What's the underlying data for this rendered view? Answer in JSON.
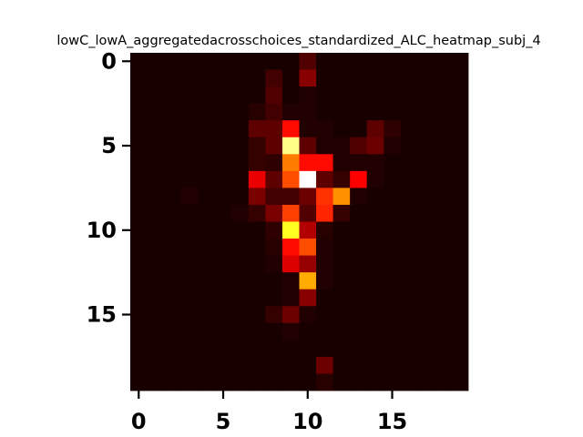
{
  "chart_data": {
    "type": "heatmap",
    "title": "lowC_lowA_aggregatedacrosschoices_standardized_ALC_heatmap_subj_4",
    "xlabel": "",
    "ylabel": "",
    "colormap": "hot",
    "vmin": 0,
    "vmax": 1,
    "xlim": [
      -0.5,
      19.5
    ],
    "ylim": [
      19.5,
      -0.5
    ],
    "x_ticks": [
      0,
      5,
      10,
      15
    ],
    "y_ticks": [
      0,
      5,
      10,
      15
    ],
    "x_tick_labels": [
      "0",
      "5",
      "10",
      "15"
    ],
    "y_tick_labels": [
      "0",
      "5",
      "10",
      "15"
    ],
    "grid": false,
    "legend": "none",
    "values": [
      [
        0.02,
        0.02,
        0.02,
        0.02,
        0.02,
        0.02,
        0.02,
        0.02,
        0.02,
        0.02,
        0.1,
        0.02,
        0.02,
        0.02,
        0.02,
        0.02,
        0.02,
        0.02,
        0.02,
        0.02
      ],
      [
        0.02,
        0.02,
        0.02,
        0.02,
        0.02,
        0.02,
        0.02,
        0.02,
        0.08,
        0.02,
        0.18,
        0.02,
        0.02,
        0.02,
        0.02,
        0.02,
        0.02,
        0.02,
        0.02,
        0.02
      ],
      [
        0.02,
        0.02,
        0.02,
        0.02,
        0.02,
        0.02,
        0.02,
        0.02,
        0.1,
        0.02,
        0.03,
        0.02,
        0.02,
        0.02,
        0.02,
        0.02,
        0.02,
        0.02,
        0.02,
        0.02
      ],
      [
        0.02,
        0.02,
        0.02,
        0.02,
        0.02,
        0.02,
        0.02,
        0.04,
        0.08,
        0.03,
        0.03,
        0.02,
        0.02,
        0.02,
        0.02,
        0.02,
        0.02,
        0.02,
        0.02,
        0.02
      ],
      [
        0.02,
        0.02,
        0.02,
        0.02,
        0.02,
        0.02,
        0.02,
        0.12,
        0.12,
        0.38,
        0.03,
        0.03,
        0.02,
        0.02,
        0.12,
        0.05,
        0.02,
        0.02,
        0.02,
        0.02
      ],
      [
        0.02,
        0.02,
        0.02,
        0.02,
        0.02,
        0.02,
        0.02,
        0.06,
        0.12,
        0.88,
        0.12,
        0.03,
        0.03,
        0.1,
        0.14,
        0.03,
        0.02,
        0.02,
        0.02,
        0.02
      ],
      [
        0.02,
        0.02,
        0.02,
        0.02,
        0.02,
        0.02,
        0.02,
        0.06,
        0.05,
        0.55,
        0.38,
        0.38,
        0.03,
        0.03,
        0.03,
        0.02,
        0.02,
        0.02,
        0.02,
        0.02
      ],
      [
        0.02,
        0.02,
        0.02,
        0.02,
        0.02,
        0.02,
        0.02,
        0.32,
        0.12,
        0.48,
        1.0,
        0.12,
        0.06,
        0.36,
        0.03,
        0.02,
        0.02,
        0.02,
        0.02,
        0.02
      ],
      [
        0.02,
        0.02,
        0.02,
        0.03,
        0.02,
        0.02,
        0.02,
        0.16,
        0.08,
        0.08,
        0.14,
        0.44,
        0.58,
        0.03,
        0.02,
        0.02,
        0.02,
        0.02,
        0.02,
        0.02
      ],
      [
        0.02,
        0.02,
        0.02,
        0.02,
        0.02,
        0.02,
        0.03,
        0.06,
        0.16,
        0.46,
        0.1,
        0.42,
        0.06,
        0.02,
        0.02,
        0.02,
        0.02,
        0.02,
        0.02,
        0.02
      ],
      [
        0.02,
        0.02,
        0.02,
        0.02,
        0.02,
        0.02,
        0.02,
        0.02,
        0.05,
        0.78,
        0.24,
        0.04,
        0.02,
        0.02,
        0.02,
        0.02,
        0.02,
        0.02,
        0.02,
        0.02
      ],
      [
        0.02,
        0.02,
        0.02,
        0.02,
        0.02,
        0.02,
        0.02,
        0.02,
        0.04,
        0.38,
        0.48,
        0.03,
        0.02,
        0.02,
        0.02,
        0.02,
        0.02,
        0.02,
        0.02,
        0.02
      ],
      [
        0.02,
        0.02,
        0.02,
        0.02,
        0.02,
        0.02,
        0.02,
        0.02,
        0.03,
        0.3,
        0.2,
        0.03,
        0.02,
        0.02,
        0.02,
        0.02,
        0.02,
        0.02,
        0.02,
        0.02
      ],
      [
        0.02,
        0.02,
        0.02,
        0.02,
        0.02,
        0.02,
        0.02,
        0.02,
        0.02,
        0.03,
        0.62,
        0.03,
        0.02,
        0.02,
        0.02,
        0.02,
        0.02,
        0.02,
        0.02,
        0.02
      ],
      [
        0.02,
        0.02,
        0.02,
        0.02,
        0.02,
        0.02,
        0.02,
        0.02,
        0.02,
        0.03,
        0.18,
        0.02,
        0.02,
        0.02,
        0.02,
        0.02,
        0.02,
        0.02,
        0.02,
        0.02
      ],
      [
        0.02,
        0.02,
        0.02,
        0.02,
        0.02,
        0.02,
        0.02,
        0.02,
        0.06,
        0.14,
        0.03,
        0.02,
        0.02,
        0.02,
        0.02,
        0.02,
        0.02,
        0.02,
        0.02,
        0.02
      ],
      [
        0.02,
        0.02,
        0.02,
        0.02,
        0.02,
        0.02,
        0.02,
        0.02,
        0.02,
        0.03,
        0.02,
        0.02,
        0.02,
        0.02,
        0.02,
        0.02,
        0.02,
        0.02,
        0.02,
        0.02
      ],
      [
        0.02,
        0.02,
        0.02,
        0.02,
        0.02,
        0.02,
        0.02,
        0.02,
        0.02,
        0.02,
        0.02,
        0.02,
        0.02,
        0.02,
        0.02,
        0.02,
        0.02,
        0.02,
        0.02,
        0.02
      ],
      [
        0.02,
        0.02,
        0.02,
        0.02,
        0.02,
        0.02,
        0.02,
        0.02,
        0.02,
        0.02,
        0.02,
        0.14,
        0.02,
        0.02,
        0.02,
        0.02,
        0.02,
        0.02,
        0.02,
        0.02
      ],
      [
        0.02,
        0.02,
        0.02,
        0.02,
        0.02,
        0.02,
        0.02,
        0.02,
        0.02,
        0.02,
        0.02,
        0.04,
        0.02,
        0.02,
        0.02,
        0.02,
        0.02,
        0.02,
        0.02,
        0.02
      ]
    ]
  }
}
